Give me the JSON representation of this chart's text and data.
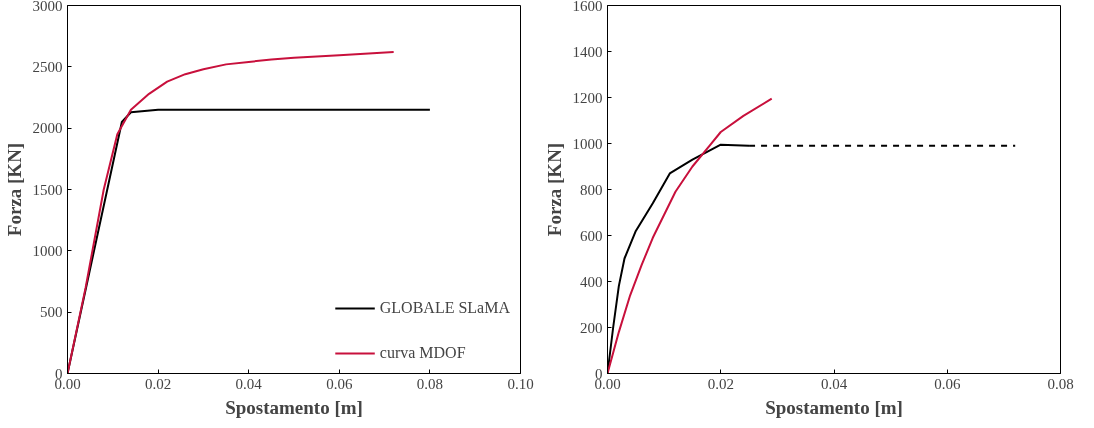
{
  "chart_data": [
    {
      "type": "line",
      "xlabel": "Spostamento [m]",
      "ylabel": "Forza [KN]",
      "xlim": [
        0,
        0.1
      ],
      "xticks": [
        {
          "value": 0,
          "label": "0.00"
        },
        {
          "value": 0.02,
          "label": "0.02"
        },
        {
          "value": 0.04,
          "label": "0.04"
        },
        {
          "value": 0.06,
          "label": "0.06"
        },
        {
          "value": 0.08,
          "label": "0.08"
        },
        {
          "value": 0.1,
          "label": "0.10"
        }
      ],
      "ylim": [
        0,
        3000
      ],
      "yticks": [
        0,
        500,
        1000,
        1500,
        2000,
        2500,
        3000
      ],
      "grid": false,
      "legend": "bottom right",
      "marker": "none",
      "series": [
        {
          "name": "GLOBALE SLaMA",
          "color": "#000000",
          "x": [
            0,
            0.012,
            0.014,
            0.02,
            0.08
          ],
          "values": [
            0,
            2050,
            2130,
            2150,
            2150
          ]
        },
        {
          "name": "curva MDOF",
          "color": "#c8103c",
          "x": [
            0,
            0.004,
            0.008,
            0.011,
            0.014,
            0.018,
            0.022,
            0.026,
            0.03,
            0.035,
            0.04,
            0.045,
            0.05,
            0.06,
            0.072
          ],
          "values": [
            0,
            700,
            1500,
            1950,
            2150,
            2280,
            2380,
            2440,
            2480,
            2520,
            2540,
            2560,
            2575,
            2595,
            2620
          ]
        }
      ]
    },
    {
      "type": "line",
      "xlabel": "Spostamento [m]",
      "ylabel": "Forza [KN]",
      "xlim": [
        0,
        0.08
      ],
      "xticks": [
        {
          "value": 0,
          "label": "0.00"
        },
        {
          "value": 0.02,
          "label": "0.02"
        },
        {
          "value": 0.04,
          "label": "0.04"
        },
        {
          "value": 0.06,
          "label": "0.06"
        },
        {
          "value": 0.08,
          "label": "0.08"
        }
      ],
      "ylim": [
        0,
        1600
      ],
      "yticks": [
        0,
        200,
        400,
        600,
        800,
        1000,
        1200,
        1400,
        1600
      ],
      "grid": false,
      "marker": "none",
      "series": [
        {
          "color": "#000000",
          "line_style": "solid",
          "x": [
            0,
            0.001,
            0.002,
            0.003,
            0.005,
            0.008,
            0.011,
            0.015,
            0.02,
            0.025
          ],
          "values": [
            0,
            200,
            380,
            500,
            620,
            740,
            870,
            930,
            995,
            990
          ]
        },
        {
          "color": "#000000",
          "line_style": "dashed",
          "x": [
            0.025,
            0.072
          ],
          "values": [
            990,
            990
          ]
        },
        {
          "color": "#c8103c",
          "line_style": "solid",
          "x": [
            0,
            0.002,
            0.004,
            0.006,
            0.008,
            0.01,
            0.012,
            0.015,
            0.018,
            0.02,
            0.024,
            0.029
          ],
          "values": [
            0,
            180,
            340,
            470,
            590,
            690,
            790,
            900,
            990,
            1050,
            1120,
            1195
          ]
        }
      ]
    }
  ]
}
